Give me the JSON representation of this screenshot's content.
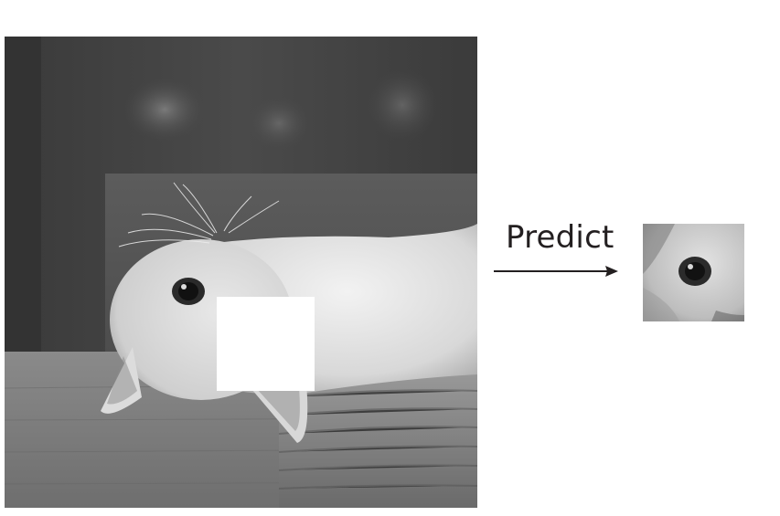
{
  "predict_label": "Predict",
  "colors": {
    "mask": "#ffffff",
    "arrow": "#231f20",
    "text": "#231f20"
  }
}
